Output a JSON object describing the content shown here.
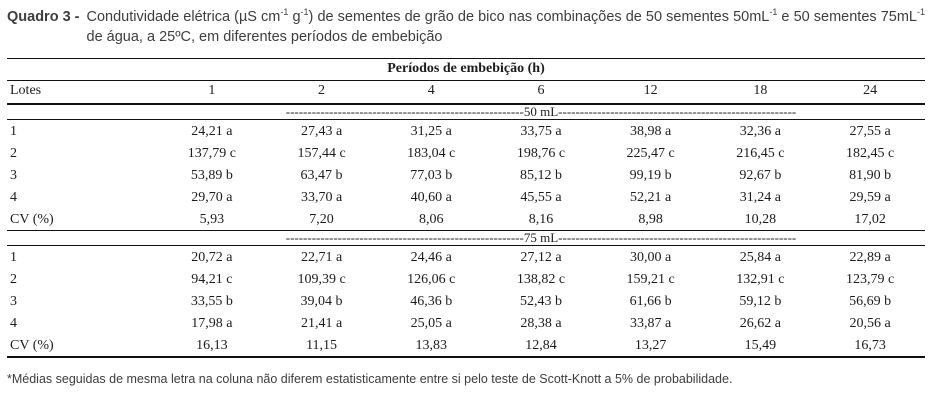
{
  "colors": {
    "background": "#ffffff",
    "rule": "#111111",
    "caption_text": "#3d3d3d",
    "table_text": "#1c1c1c"
  },
  "caption": {
    "label": "Quadro 3 -",
    "segments": [
      {
        "t": "Condutividade elétrica (µS cm"
      },
      {
        "t": "-1",
        "sup": true
      },
      {
        "t": " g"
      },
      {
        "t": "-1",
        "sup": true
      },
      {
        "t": ") de sementes de grão de bico nas combinações de 50 sementes 50mL"
      },
      {
        "t": "-1",
        "sup": true
      },
      {
        "t": " e 50 sementes 75mL"
      },
      {
        "t": "-1",
        "sup": true
      },
      {
        "t": " de água, a 25ºC, em diferentes períodos de embebição"
      }
    ]
  },
  "table": {
    "header_group": "Períodos de embebição (h)",
    "col_headers": [
      "Lotes",
      "1",
      "2",
      "4",
      "6",
      "12",
      "18",
      "24"
    ],
    "dashes": "-------------------------------------------------------",
    "sections": [
      {
        "divider": "50 mL",
        "rows": [
          {
            "label": "1",
            "values": [
              "24,21 a",
              "27,43 a",
              "31,25 a",
              "33,75 a",
              "38,98 a",
              "32,36 a",
              "27,55 a"
            ]
          },
          {
            "label": "2",
            "values": [
              "137,79 c",
              "157,44 c",
              "183,04 c",
              "198,76 c",
              "225,47 c",
              "216,45 c",
              "182,45 c"
            ]
          },
          {
            "label": "3",
            "values": [
              "53,89 b",
              "63,47 b",
              "77,03 b",
              "85,12 b",
              "99,19 b",
              "92,67 b",
              "81,90 b"
            ]
          },
          {
            "label": "4",
            "values": [
              "29,70 a",
              "33,70 a",
              "40,60 a",
              "45,55 a",
              "52,21 a",
              "31,24 a",
              "29,59 a"
            ]
          },
          {
            "label": "CV (%)",
            "values": [
              "5,93",
              "7,20",
              "8,06",
              "8,16",
              "8,98",
              "10,28",
              "17,02"
            ]
          }
        ]
      },
      {
        "divider": "75 mL",
        "rows": [
          {
            "label": "1",
            "values": [
              "20,72 a",
              "22,71 a",
              "24,46 a",
              "27,12 a",
              "30,00 a",
              "25,84 a",
              "22,89 a"
            ]
          },
          {
            "label": "2",
            "values": [
              "94,21 c",
              "109,39 c",
              "126,06 c",
              "138,82 c",
              "159,21 c",
              "132,91 c",
              "123,79 c"
            ]
          },
          {
            "label": "3",
            "values": [
              "33,55 b",
              "39,04 b",
              "46,36 b",
              "52,43 b",
              "61,66 b",
              "59,12 b",
              "56,69 b"
            ]
          },
          {
            "label": "4",
            "values": [
              "17,98 a",
              "21,41 a",
              "25,05 a",
              "28,38 a",
              "33,87 a",
              "26,62 a",
              "20,56 a"
            ]
          },
          {
            "label": "CV (%)",
            "values": [
              "16,13",
              "11,15",
              "13,83",
              "12,84",
              "13,27",
              "15,49",
              "16,73"
            ]
          }
        ]
      }
    ]
  },
  "footnote": "*Médias seguidas de mesma letra na coluna não diferem estatisticamente entre si pelo teste de Scott-Knott a 5% de probabilidade."
}
